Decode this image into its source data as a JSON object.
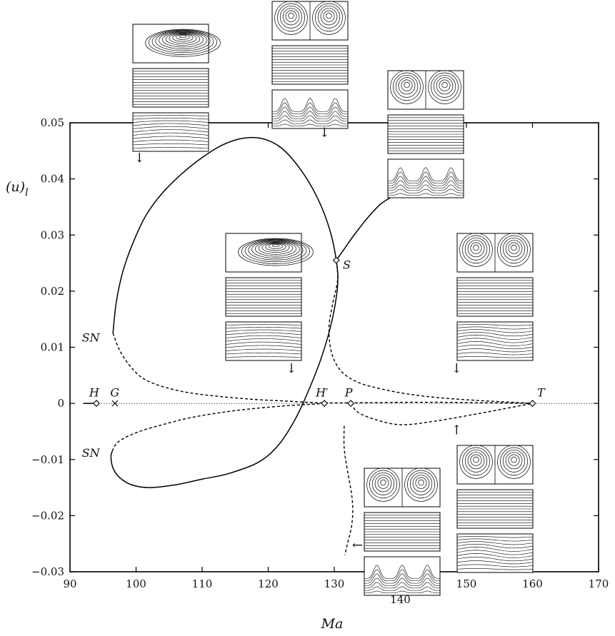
{
  "chart_data": {
    "type": "line",
    "xlabel": "Ma",
    "ylabel": "(u)",
    "ylabel_sub": "l",
    "xlim": [
      90,
      170
    ],
    "ylim": [
      -0.03,
      0.05
    ],
    "xticks": [
      {
        "v": 90,
        "t": "90"
      },
      {
        "v": 100,
        "t": "100"
      },
      {
        "v": 110,
        "t": "110"
      },
      {
        "v": 120,
        "t": "120"
      },
      {
        "v": 130,
        "t": "130"
      },
      {
        "v": 140,
        "t": "140"
      },
      {
        "v": 150,
        "t": "150"
      },
      {
        "v": 160,
        "t": "160"
      },
      {
        "v": 170,
        "t": "170"
      }
    ],
    "yticks": [
      {
        "v": 0.05,
        "t": "0.05"
      },
      {
        "v": 0.04,
        "t": "0.04"
      },
      {
        "v": 0.03,
        "t": "0.03"
      },
      {
        "v": 0.02,
        "t": "0.02"
      },
      {
        "v": 0.01,
        "t": "0.01"
      },
      {
        "v": 0,
        "t": "0"
      },
      {
        "v": -0.01,
        "t": "−0.01"
      },
      {
        "v": -0.02,
        "t": "−0.02"
      },
      {
        "v": -0.03,
        "t": "−0.03"
      }
    ],
    "series": [
      {
        "style": "solid",
        "points": [
          [
            92,
            0
          ],
          [
            94,
            0
          ]
        ]
      },
      {
        "style": "dotted",
        "points": [
          [
            94,
            0
          ],
          [
            170,
            0
          ]
        ]
      },
      {
        "style": "solid",
        "points": [
          [
            96.5,
            0.0125
          ],
          [
            97,
            0.018
          ],
          [
            98,
            0.0235
          ],
          [
            99.5,
            0.0285
          ],
          [
            101.5,
            0.0335
          ],
          [
            104,
            0.0375
          ],
          [
            107,
            0.041
          ],
          [
            110,
            0.0438
          ],
          [
            113,
            0.046
          ],
          [
            116,
            0.0472
          ],
          [
            119,
            0.0472
          ],
          [
            122,
            0.0455
          ],
          [
            125,
            0.0415
          ],
          [
            127.5,
            0.0365
          ],
          [
            129.3,
            0.031
          ],
          [
            130.3,
            0.0255
          ],
          [
            130.5,
            0.021
          ],
          [
            129.6,
            0.0145
          ],
          [
            128,
            0.008
          ],
          [
            126,
            0.002
          ],
          [
            124,
            -0.003
          ],
          [
            121.5,
            -0.0075
          ],
          [
            118.5,
            -0.0105
          ],
          [
            114,
            -0.0125
          ],
          [
            110,
            -0.0135
          ],
          [
            106,
            -0.0145
          ],
          [
            102,
            -0.015
          ],
          [
            99.3,
            -0.0145
          ],
          [
            97.5,
            -0.0132
          ],
          [
            96.5,
            -0.0115
          ],
          [
            96.2,
            -0.0095
          ],
          [
            96.4,
            -0.0085
          ]
        ]
      },
      {
        "style": "solid",
        "points": [
          [
            130.3,
            0.0255
          ],
          [
            131.5,
            0.0275
          ],
          [
            133,
            0.03
          ],
          [
            135,
            0.033
          ],
          [
            137,
            0.0355
          ],
          [
            139,
            0.037
          ]
        ]
      },
      {
        "style": "dashed",
        "points": [
          [
            96.5,
            0.0125
          ],
          [
            97.5,
            0.0095
          ],
          [
            99,
            0.0068
          ],
          [
            101,
            0.0045
          ],
          [
            104,
            0.003
          ],
          [
            108,
            0.0019
          ],
          [
            113,
            0.0012
          ],
          [
            118,
            0.0007
          ],
          [
            123,
            0.0004
          ],
          [
            126,
            0.0002
          ],
          [
            128.5,
            0.0001
          ],
          [
            132.5,
            0.0001
          ],
          [
            145,
            0.0002
          ],
          [
            160,
            0
          ]
        ]
      },
      {
        "style": "dashed",
        "points": [
          [
            96.4,
            -0.0085
          ],
          [
            97,
            -0.0072
          ],
          [
            98.5,
            -0.006
          ],
          [
            101,
            -0.0048
          ],
          [
            104,
            -0.0038
          ],
          [
            108,
            -0.0026
          ],
          [
            113,
            -0.0016
          ],
          [
            118,
            -0.0009
          ],
          [
            123,
            -0.0004
          ],
          [
            126,
            -0.0002
          ],
          [
            128.5,
            0
          ]
        ]
      },
      {
        "style": "dashed",
        "points": [
          [
            130.3,
            0.0255
          ],
          [
            130.5,
            0.022
          ],
          [
            129.8,
            0.018
          ],
          [
            129.2,
            0.0135
          ],
          [
            129.6,
            0.009
          ],
          [
            131,
            0.0058
          ],
          [
            133.5,
            0.0038
          ],
          [
            137,
            0.0026
          ],
          [
            141,
            0.0017
          ],
          [
            146,
            0.001
          ],
          [
            152,
            0.0005
          ],
          [
            157,
            0.0002
          ],
          [
            160,
            0
          ]
        ]
      },
      {
        "style": "dashed",
        "points": [
          [
            132.5,
            0
          ],
          [
            133.5,
            -0.0015
          ],
          [
            136,
            -0.0028
          ],
          [
            140,
            -0.0038
          ],
          [
            145,
            -0.0032
          ],
          [
            151,
            -0.002
          ],
          [
            156,
            -0.0009
          ],
          [
            160,
            0
          ]
        ]
      },
      {
        "style": "dashed",
        "points": [
          [
            131.5,
            -0.004
          ],
          [
            131.5,
            -0.008
          ],
          [
            132,
            -0.012
          ],
          [
            132.6,
            -0.016
          ],
          [
            132.8,
            -0.019
          ],
          [
            132.6,
            -0.022
          ],
          [
            132,
            -0.025
          ],
          [
            131.6,
            -0.027
          ]
        ]
      }
    ],
    "markers": [
      {
        "name": "H",
        "symbol": "diamond",
        "x": 94,
        "y": 0
      },
      {
        "name": "G",
        "symbol": "cross",
        "x": 96.8,
        "y": 0
      },
      {
        "name": "H′",
        "symbol": "diamond",
        "x": 128.5,
        "y": 0
      },
      {
        "name": "P",
        "symbol": "diamond",
        "x": 132.5,
        "y": 0
      },
      {
        "name": "T",
        "symbol": "diamond",
        "x": 160,
        "y": 0
      },
      {
        "name": "S",
        "symbol": "diamond",
        "x": 130.3,
        "y": 0.0255
      }
    ],
    "annotations": [
      {
        "text": "H",
        "x": 92.9,
        "y": 0.0012
      },
      {
        "text": "G",
        "x": 96.1,
        "y": 0.0012
      },
      {
        "text": "H′",
        "x": 127.2,
        "y": 0.0012
      },
      {
        "text": "P",
        "x": 131.6,
        "y": 0.0012
      },
      {
        "text": "T",
        "x": 160.7,
        "y": 0.0012
      },
      {
        "text": "S",
        "x": 131.3,
        "y": 0.024
      },
      {
        "text": "SN",
        "x": 91.8,
        "y": 0.011
      },
      {
        "text": "SN",
        "x": 91.8,
        "y": -0.0095
      }
    ],
    "arrows": [
      {
        "glyph": "↓",
        "x": 100.5,
        "y": 0.043
      },
      {
        "glyph": "↓",
        "x": 128.5,
        "y": 0.0475
      },
      {
        "glyph": "↓",
        "x": 123.5,
        "y": 0.0055
      },
      {
        "glyph": "↓",
        "x": 148.5,
        "y": 0.0055
      },
      {
        "glyph": "↑",
        "x": 148.5,
        "y": -0.0055
      },
      {
        "glyph": "←",
        "x": 133.5,
        "y": -0.026
      }
    ]
  },
  "insets": [
    {
      "name": "inset-top-left",
      "panels": [
        {
          "kind": "single-cell"
        },
        {
          "kind": "horizontal-lines"
        },
        {
          "kind": "wavy-single"
        }
      ]
    },
    {
      "name": "inset-top-center",
      "panels": [
        {
          "kind": "double-cell"
        },
        {
          "kind": "horizontal-lines"
        },
        {
          "kind": "plumes"
        }
      ]
    },
    {
      "name": "inset-top-right",
      "panels": [
        {
          "kind": "double-cell"
        },
        {
          "kind": "horizontal-lines"
        },
        {
          "kind": "plumes"
        }
      ]
    },
    {
      "name": "inset-mid-center",
      "panels": [
        {
          "kind": "single-cell"
        },
        {
          "kind": "horizontal-lines"
        },
        {
          "kind": "wavy-single"
        }
      ]
    },
    {
      "name": "inset-mid-right",
      "panels": [
        {
          "kind": "double-cell"
        },
        {
          "kind": "horizontal-lines"
        },
        {
          "kind": "wavy-double"
        }
      ]
    },
    {
      "name": "inset-bottom-center",
      "panels": [
        {
          "kind": "double-cell"
        },
        {
          "kind": "horizontal-lines"
        },
        {
          "kind": "plumes"
        }
      ]
    },
    {
      "name": "inset-bottom-right",
      "panels": [
        {
          "kind": "double-cell"
        },
        {
          "kind": "horizontal-lines"
        },
        {
          "kind": "wavy-double"
        }
      ]
    }
  ]
}
